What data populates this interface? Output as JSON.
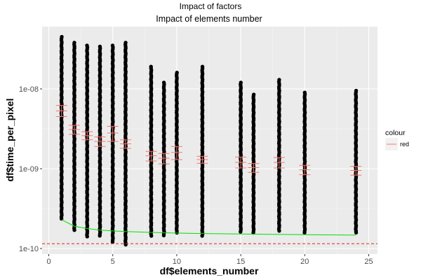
{
  "chart_data": {
    "type": "scatter",
    "suptitle": "Impact of factors",
    "title": "Impact of elements number",
    "xlabel": "df$elements_number",
    "ylabel": "df$time_per_pixel",
    "x_scale": "linear",
    "y_scale": "log10",
    "xlim": [
      0,
      25
    ],
    "ylim": [
      1e-10,
      5e-08
    ],
    "x_ticks": [
      0,
      5,
      10,
      15,
      20,
      25
    ],
    "x_tick_labels": [
      "0",
      "5",
      "10",
      "15",
      "20",
      "25"
    ],
    "y_ticks": [
      1e-10,
      1e-09,
      1e-08
    ],
    "y_tick_labels": [
      "1e-10",
      "1e-09",
      "1e-08"
    ],
    "grid": true,
    "background": "#ebebeb",
    "point_color": "#000000",
    "points_by_x": [
      {
        "x": 1,
        "ymin": 2.3e-10,
        "ymax": 4.5e-08
      },
      {
        "x": 2,
        "ymin": 1.7e-10,
        "ymax": 3.8e-08
      },
      {
        "x": 3,
        "ymin": 1.4e-10,
        "ymax": 3.5e-08
      },
      {
        "x": 4,
        "ymin": 1.4e-10,
        "ymax": 3.4e-08
      },
      {
        "x": 5,
        "ymin": 1.2e-10,
        "ymax": 3.5e-08
      },
      {
        "x": 6,
        "ymin": 1.1e-10,
        "ymax": 3.8e-08
      },
      {
        "x": 8,
        "ymin": 1.4e-10,
        "ymax": 1.9e-08
      },
      {
        "x": 9,
        "ymin": 1.4e-10,
        "ymax": 1.2e-08
      },
      {
        "x": 10,
        "ymin": 1.5e-10,
        "ymax": 1.6e-08
      },
      {
        "x": 12,
        "ymin": 1.4e-10,
        "ymax": 1.9e-08
      },
      {
        "x": 15,
        "ymin": 1.6e-10,
        "ymax": 1.2e-08
      },
      {
        "x": 16,
        "ymin": 1.5e-10,
        "ymax": 8.5e-09
      },
      {
        "x": 18,
        "ymin": 1.6e-10,
        "ymax": 1.3e-08
      },
      {
        "x": 20,
        "ymin": 1.5e-10,
        "ymax": 9e-09
      },
      {
        "x": 24,
        "ymin": 1.5e-10,
        "ymax": 9.5e-09
      }
    ],
    "errorbars": {
      "name": "red",
      "color": "#f8766d",
      "points": [
        {
          "x": 1,
          "y": 5.3e-09,
          "lo": 4.5e-09,
          "hi": 6.2e-09
        },
        {
          "x": 2,
          "y": 3.1e-09,
          "lo": 2.7e-09,
          "hi": 3.5e-09
        },
        {
          "x": 3,
          "y": 2.6e-09,
          "lo": 2.3e-09,
          "hi": 2.9e-09
        },
        {
          "x": 4,
          "y": 2.2e-09,
          "lo": 1.9e-09,
          "hi": 2.5e-09
        },
        {
          "x": 5,
          "y": 2.8e-09,
          "lo": 2.2e-09,
          "hi": 3.4e-09
        },
        {
          "x": 6,
          "y": 2.05e-09,
          "lo": 1.8e-09,
          "hi": 2.3e-09
        },
        {
          "x": 8,
          "y": 1.45e-09,
          "lo": 1.25e-09,
          "hi": 1.65e-09
        },
        {
          "x": 9,
          "y": 1.35e-09,
          "lo": 1.15e-09,
          "hi": 1.55e-09
        },
        {
          "x": 10,
          "y": 1.6e-09,
          "lo": 1.3e-09,
          "hi": 1.9e-09
        },
        {
          "x": 12,
          "y": 1.3e-09,
          "lo": 1.17e-09,
          "hi": 1.43e-09
        },
        {
          "x": 15,
          "y": 1.2e-09,
          "lo": 1.02e-09,
          "hi": 1.4e-09
        },
        {
          "x": 16,
          "y": 1.03e-09,
          "lo": 9e-10,
          "hi": 1.16e-09
        },
        {
          "x": 18,
          "y": 1.2e-09,
          "lo": 1.02e-09,
          "hi": 1.38e-09
        },
        {
          "x": 20,
          "y": 9.7e-10,
          "lo": 8.4e-10,
          "hi": 1.1e-09
        },
        {
          "x": 24,
          "y": 9.5e-10,
          "lo": 8.3e-10,
          "hi": 1.07e-09
        }
      ]
    },
    "trend_line": {
      "color": "#00e000",
      "x": [
        1,
        2,
        3,
        4,
        5,
        6,
        8,
        10,
        12,
        15,
        18,
        20,
        24
      ],
      "y": [
        2.3e-10,
        1.9e-10,
        1.78e-10,
        1.7e-10,
        1.66e-10,
        1.63e-10,
        1.59e-10,
        1.56e-10,
        1.54e-10,
        1.52e-10,
        1.5e-10,
        1.49e-10,
        1.47e-10
      ]
    },
    "hline": {
      "y": 1.15e-10,
      "color": "#e0201b",
      "style": "dashed"
    },
    "legend": {
      "title": "colour",
      "entries": [
        "red"
      ],
      "position": "right"
    }
  }
}
